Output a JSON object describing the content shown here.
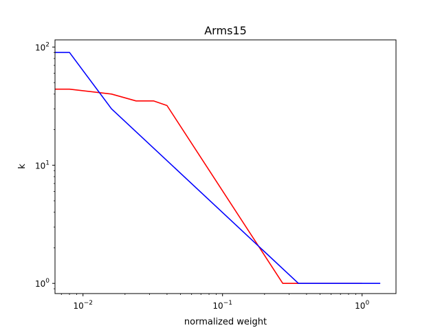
{
  "chart_data": {
    "type": "line",
    "title": "Arms15",
    "xlabel": "normalized weight",
    "ylabel": "k",
    "xscale": "log",
    "yscale": "log",
    "xlim": [
      0.0063,
      1.75
    ],
    "ylim": [
      0.82,
      115
    ],
    "grid": false,
    "legend": "none",
    "x_ticks": [
      {
        "value": 0.01,
        "base": "10",
        "exp": "−2"
      },
      {
        "value": 0.1,
        "base": "10",
        "exp": "−1"
      },
      {
        "value": 1,
        "base": "10",
        "exp": "0"
      }
    ],
    "y_ticks": [
      {
        "value": 1,
        "base": "10",
        "exp": "0"
      },
      {
        "value": 10,
        "base": "10",
        "exp": "1"
      },
      {
        "value": 100,
        "base": "10",
        "exp": "2"
      }
    ],
    "series": [
      {
        "color": "#ff0000",
        "x": [
          0.0063,
          0.008,
          0.016,
          0.024,
          0.032,
          0.04,
          0.27,
          1.0
        ],
        "y": [
          44,
          44,
          40,
          35,
          35,
          32,
          1,
          1
        ]
      },
      {
        "color": "#0000ff",
        "x": [
          0.0063,
          0.008,
          0.016,
          0.35,
          1.35
        ],
        "y": [
          90,
          90,
          30,
          1,
          1
        ]
      }
    ]
  }
}
